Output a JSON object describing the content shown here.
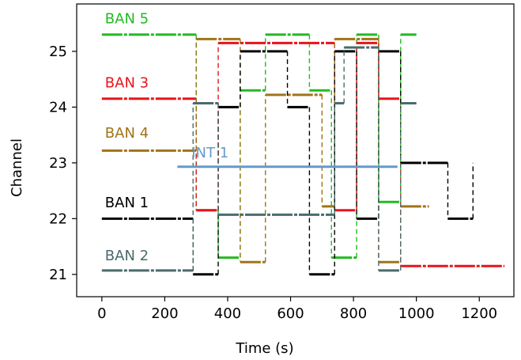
{
  "chart_data": {
    "type": "line",
    "xlabel": "Time (s)",
    "ylabel": "Channel",
    "xlim": [
      -80,
      1310
    ],
    "ylim": [
      20.6,
      25.85
    ],
    "x_ticks": [
      0,
      200,
      400,
      600,
      800,
      1000,
      1200
    ],
    "y_ticks": [
      21,
      22,
      23,
      24,
      25
    ],
    "grid": false,
    "legend": "inline-labels",
    "series": [
      {
        "name": "BAN 5",
        "color": "#22bb22",
        "label_x": 10,
        "label_y": 25.5,
        "points": [
          [
            0,
            25.3
          ],
          [
            300,
            25.3
          ],
          [
            300,
            22.15
          ],
          [
            370,
            22.15
          ],
          [
            370,
            21.3
          ],
          [
            440,
            21.3
          ],
          [
            440,
            24.3
          ],
          [
            520,
            24.3
          ],
          [
            520,
            25.3
          ],
          [
            660,
            25.3
          ],
          [
            660,
            24.3
          ],
          [
            730,
            24.3
          ],
          [
            730,
            21.3
          ],
          [
            810,
            21.3
          ],
          [
            810,
            25.3
          ],
          [
            880,
            25.3
          ],
          [
            880,
            22.3
          ],
          [
            950,
            22.3
          ],
          [
            950,
            25.3
          ],
          [
            1000,
            25.3
          ]
        ]
      },
      {
        "name": "BAN 3",
        "color": "#e8141c",
        "label_x": 10,
        "label_y": 24.35,
        "points": [
          [
            0,
            24.15
          ],
          [
            300,
            24.15
          ],
          [
            300,
            22.15
          ],
          [
            370,
            22.15
          ],
          [
            370,
            25.15
          ],
          [
            740,
            25.15
          ],
          [
            740,
            22.15
          ],
          [
            810,
            22.15
          ],
          [
            810,
            25.15
          ],
          [
            880,
            25.15
          ],
          [
            880,
            24.15
          ],
          [
            950,
            24.15
          ],
          [
            950,
            21.15
          ],
          [
            1280,
            21.15
          ]
        ]
      },
      {
        "name": "BAN 4",
        "color": "#a07418",
        "label_x": 10,
        "label_y": 23.45,
        "points": [
          [
            0,
            23.22
          ],
          [
            300,
            23.22
          ],
          [
            300,
            25.22
          ],
          [
            440,
            25.22
          ],
          [
            440,
            21.22
          ],
          [
            520,
            21.22
          ],
          [
            520,
            24.22
          ],
          [
            700,
            24.22
          ],
          [
            700,
            22.22
          ],
          [
            740,
            22.22
          ],
          [
            740,
            25.22
          ],
          [
            880,
            25.22
          ],
          [
            880,
            21.22
          ],
          [
            950,
            21.22
          ],
          [
            950,
            22.22
          ],
          [
            1040,
            22.22
          ]
        ]
      },
      {
        "name": "BAN 1",
        "color": "#000000",
        "label_x": 10,
        "label_y": 22.2,
        "points": [
          [
            0,
            22
          ],
          [
            290,
            22
          ],
          [
            290,
            21
          ],
          [
            370,
            21
          ],
          [
            370,
            24
          ],
          [
            440,
            24
          ],
          [
            440,
            25
          ],
          [
            590,
            25
          ],
          [
            590,
            24
          ],
          [
            660,
            24
          ],
          [
            660,
            21
          ],
          [
            740,
            21
          ],
          [
            740,
            25
          ],
          [
            810,
            25
          ],
          [
            810,
            22
          ],
          [
            880,
            22
          ],
          [
            880,
            25
          ],
          [
            950,
            25
          ],
          [
            950,
            23
          ],
          [
            1100,
            23
          ],
          [
            1100,
            22
          ],
          [
            1180,
            22
          ],
          [
            1180,
            23
          ]
        ]
      },
      {
        "name": "BAN 2",
        "color": "#4a6b6b",
        "label_x": 10,
        "label_y": 21.25,
        "points": [
          [
            0,
            21.07
          ],
          [
            290,
            21.07
          ],
          [
            290,
            24.07
          ],
          [
            370,
            24.07
          ],
          [
            370,
            22.07
          ],
          [
            740,
            22.07
          ],
          [
            740,
            24.07
          ],
          [
            770,
            24.07
          ],
          [
            770,
            25.07
          ],
          [
            880,
            25.07
          ],
          [
            880,
            21.07
          ],
          [
            950,
            21.07
          ],
          [
            950,
            24.07
          ],
          [
            1000,
            24.07
          ]
        ]
      },
      {
        "name": "INT 1",
        "color": "#6699cc",
        "label_x": 285,
        "label_y": 23.1,
        "points": [
          [
            240,
            22.93
          ],
          [
            940,
            22.93
          ]
        ]
      }
    ]
  }
}
